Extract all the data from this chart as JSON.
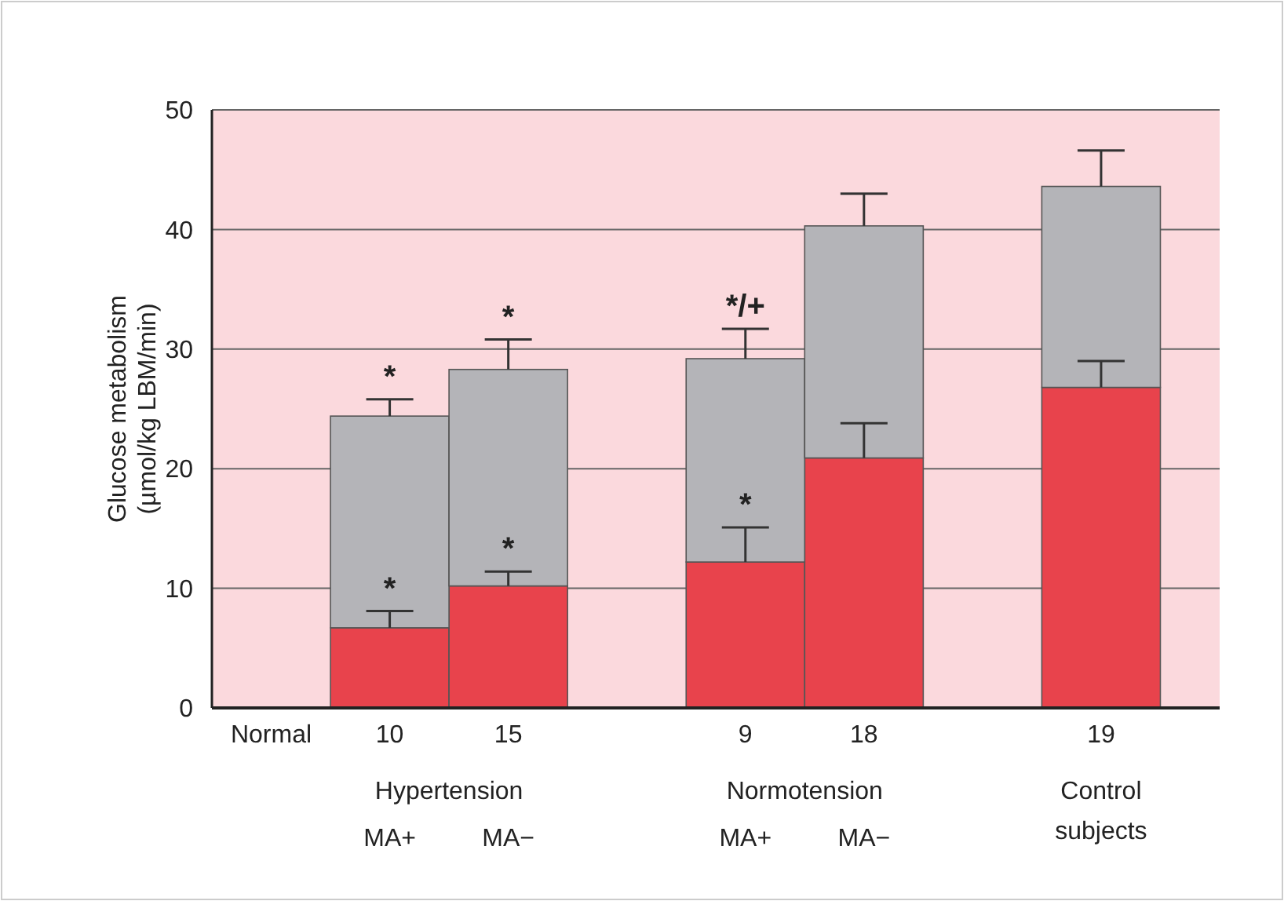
{
  "chart_data": {
    "type": "bar",
    "stacked": true,
    "ylabel": "Glucose metabolism\n(µmol/kg LBM/min)",
    "categories": [
      "Normal",
      "10",
      "15",
      null,
      "9",
      "18",
      null,
      "19"
    ],
    "series": [
      {
        "color": "#e8434c",
        "values": [
          null,
          6.7,
          10.2,
          null,
          12.2,
          20.9,
          null,
          26.8
        ],
        "errors": [
          null,
          [
            6.7,
            8.1
          ],
          [
            10.2,
            11.4
          ],
          null,
          [
            12.2,
            15.1
          ],
          [
            20.9,
            23.8
          ],
          null,
          [
            26.8,
            29.0
          ]
        ]
      },
      {
        "color": "#b4b4b8",
        "values": [
          null,
          17.7,
          18.1,
          null,
          17.0,
          19.4,
          null,
          16.8
        ],
        "errors": [
          null,
          [
            24.4,
            25.8
          ],
          [
            28.3,
            30.8
          ],
          null,
          [
            29.2,
            31.7
          ],
          [
            40.3,
            43.0
          ],
          null,
          [
            43.6,
            46.6
          ]
        ]
      }
    ],
    "ylim": [
      0,
      50
    ],
    "yticks": [
      0,
      10,
      20,
      30,
      40,
      50
    ],
    "grid": "y",
    "annotations": [
      {
        "text": "*",
        "x": "10",
        "y": 8.1
      },
      {
        "text": "*",
        "x": "15",
        "y": 11.4
      },
      {
        "text": "*",
        "x": "9",
        "y": 15.1
      },
      {
        "text": "*",
        "x": "10",
        "y": 25.8
      },
      {
        "text": "*",
        "x": "15",
        "y": 30.8
      },
      {
        "text": "*/+",
        "x": "9",
        "y": 31.7
      },
      "Hypertension",
      "MA+",
      "MA−",
      "Normotension",
      "MA+",
      "MA−",
      "Control\nsubjects"
    ]
  }
}
